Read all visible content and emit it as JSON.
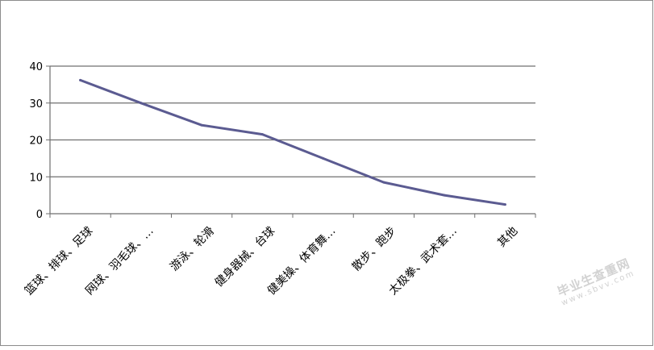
{
  "chart_data": {
    "type": "line",
    "categories": [
      "篮球、排球、足球",
      "网球、羽毛球、…",
      "游泳、轮滑",
      "健身器械、台球",
      "健美操、体育舞…",
      "散步、跑步",
      "太极拳、武术套…",
      "其他"
    ],
    "series": [
      {
        "values": [
          36.2,
          30.0,
          24.0,
          21.5,
          15.0,
          8.5,
          5.0,
          2.5
        ],
        "color": "#5b5b91"
      }
    ],
    "ylim": [
      0,
      40
    ],
    "yticks": [
      0,
      10,
      20,
      30,
      40
    ],
    "grid": true,
    "legend": "none"
  },
  "watermark": {
    "main": "毕业生查重网",
    "sub": "www.sbvv.com"
  }
}
